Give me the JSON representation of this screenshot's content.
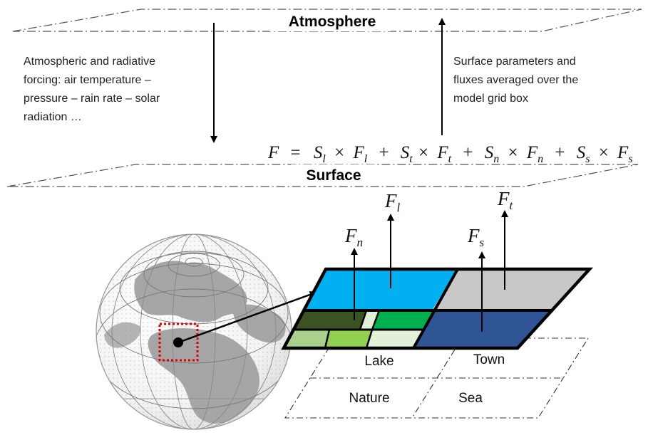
{
  "layers": {
    "top_title": "Atmosphere",
    "bottom_title": "Surface"
  },
  "forcing_text": [
    "Atmospheric  and  radiative",
    "forcing:  air  temperature  –",
    "pressure – rain rate – solar",
    "radiation …"
  ],
  "surface_text": [
    "Surface  parameters  and",
    "fluxes averaged over the",
    "model grid box"
  ],
  "equation": {
    "lhs": "F",
    "eq": "=",
    "times": "×",
    "plus": "+",
    "terms": [
      {
        "s": "S",
        "s_sub": "l",
        "f": "F",
        "f_sub": "l"
      },
      {
        "s": "S",
        "s_sub": "t",
        "f": "F",
        "f_sub": "t"
      },
      {
        "s": "S",
        "s_sub": "n",
        "f": "F",
        "f_sub": "n"
      },
      {
        "s": "S",
        "s_sub": "s",
        "f": "F",
        "f_sub": "s"
      }
    ]
  },
  "fluxes": {
    "lake": {
      "sym": "F",
      "sub": "l"
    },
    "town": {
      "sym": "F",
      "sub": "t"
    },
    "nature": {
      "sym": "F",
      "sub": "n"
    },
    "sea": {
      "sym": "F",
      "sub": "s"
    }
  },
  "tiles": {
    "lake": "Lake",
    "town": "Town",
    "nature": "Nature",
    "sea": "Sea"
  },
  "colors": {
    "lake": "#00b0f0",
    "town": "#c8c8c8",
    "sea": "#2f5597",
    "nature_dark": "#3b5323",
    "nature_green": "#00b050",
    "nature_light": "#a9d18e",
    "nature_lime": "#92d050",
    "nature_pale": "#e2f0d9",
    "marker_box": "#e00000"
  }
}
